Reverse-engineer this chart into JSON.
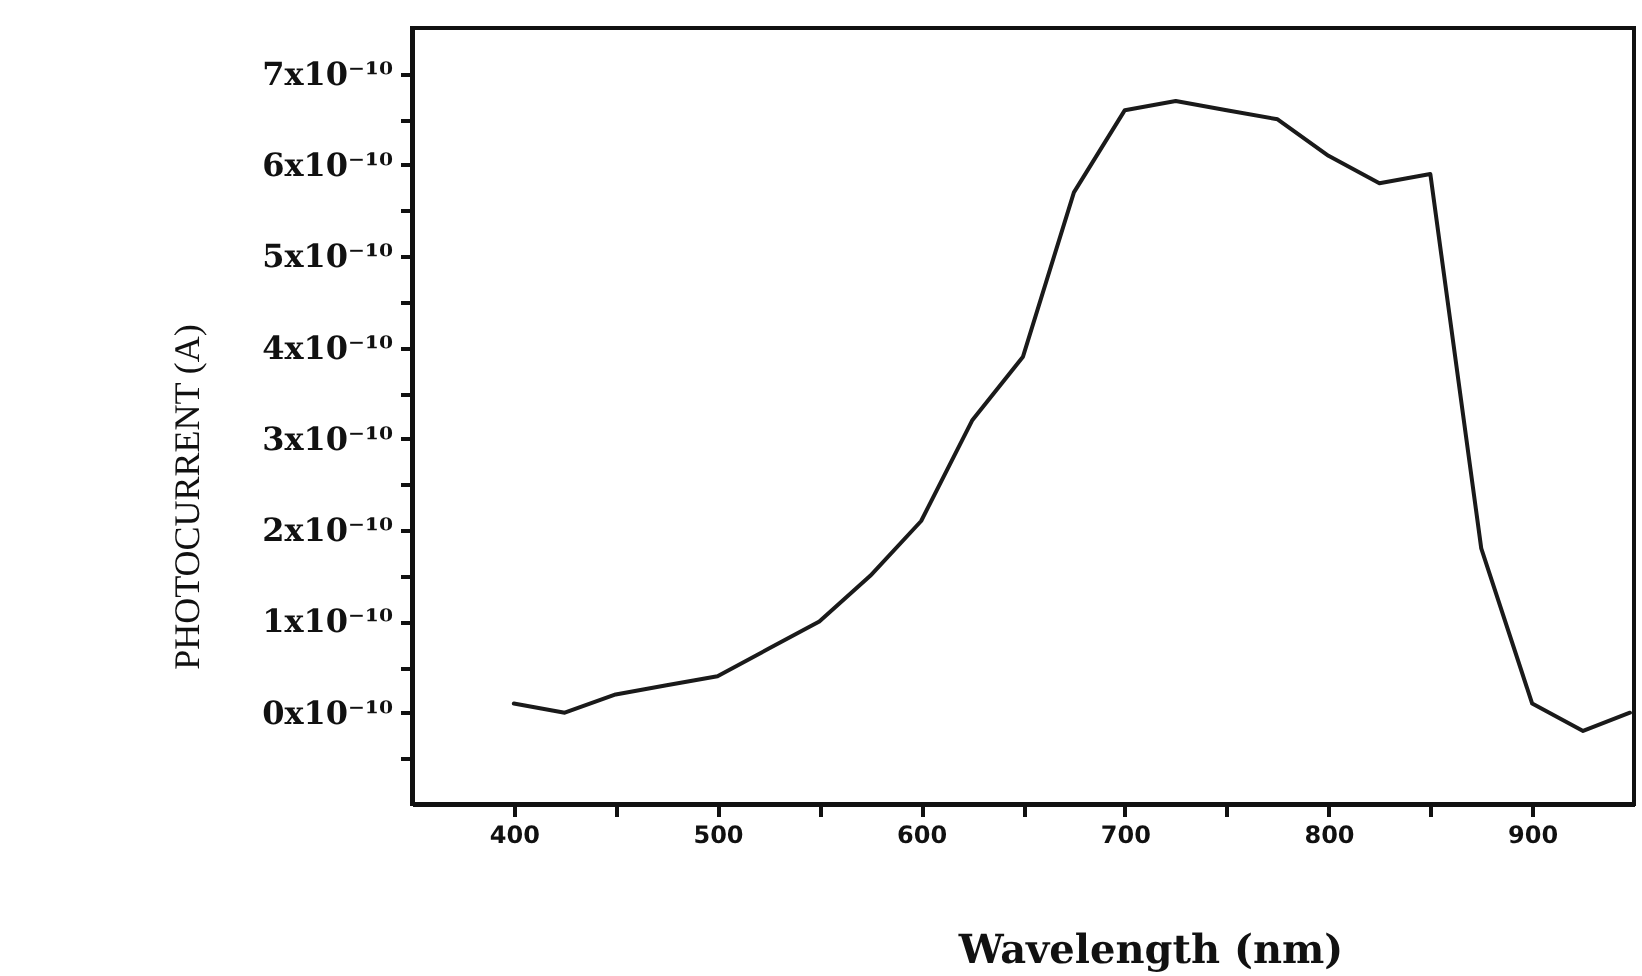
{
  "chart_data": {
    "type": "line",
    "xlabel": "Wavelength (nm)",
    "ylabel": "PHOTOCURRENT (A)",
    "x": [
      400,
      425,
      450,
      475,
      500,
      525,
      550,
      575,
      600,
      625,
      650,
      675,
      700,
      725,
      750,
      775,
      800,
      825,
      850,
      875,
      900,
      925,
      948
    ],
    "series": [
      {
        "color": "#1a1a1a",
        "values": [
          1e-11,
          0,
          2e-11,
          3e-11,
          4e-11,
          7e-11,
          1e-10,
          1.5e-10,
          2.1e-10,
          3.2e-10,
          3.9e-10,
          5.7e-10,
          6.6e-10,
          6.7e-10,
          6.6e-10,
          6.5e-10,
          6.1e-10,
          5.8e-10,
          5.9e-10,
          1.8e-10,
          1e-11,
          -2e-11,
          0
        ]
      }
    ],
    "xlim": [
      350,
      950
    ],
    "xticks": [
      400,
      {
        "value": 450,
        "label": null
      },
      500,
      {
        "value": 550,
        "label": null
      },
      600,
      {
        "value": 650,
        "label": null
      },
      700,
      {
        "value": 750,
        "label": null
      },
      800,
      {
        "value": 850,
        "label": null
      },
      900
    ],
    "ylim": [
      -1e-10,
      7.5e-10
    ],
    "yticks": [
      {
        "value": -5e-11,
        "label": null
      },
      {
        "value": 0,
        "label": "0x10⁻¹⁰"
      },
      {
        "value": 5e-11,
        "label": null
      },
      {
        "value": 1e-10,
        "label": "1x10⁻¹⁰"
      },
      {
        "value": 1.5e-10,
        "label": null
      },
      {
        "value": 2e-10,
        "label": "2x10⁻¹⁰"
      },
      {
        "value": 2.5e-10,
        "label": null
      },
      {
        "value": 3e-10,
        "label": "3x10⁻¹⁰"
      },
      {
        "value": 3.5e-10,
        "label": null
      },
      {
        "value": 4e-10,
        "label": "4x10⁻¹⁰"
      },
      {
        "value": 4.5e-10,
        "label": null
      },
      {
        "value": 5e-10,
        "label": "5x10⁻¹⁰"
      },
      {
        "value": 5.5e-10,
        "label": null
      },
      {
        "value": 6e-10,
        "label": "6x10⁻¹⁰"
      },
      {
        "value": 6.5e-10,
        "label": null
      },
      {
        "value": 7e-10,
        "label": "7x10⁻¹⁰"
      }
    ],
    "grid": false,
    "marker": "none",
    "line_style": "solid"
  }
}
